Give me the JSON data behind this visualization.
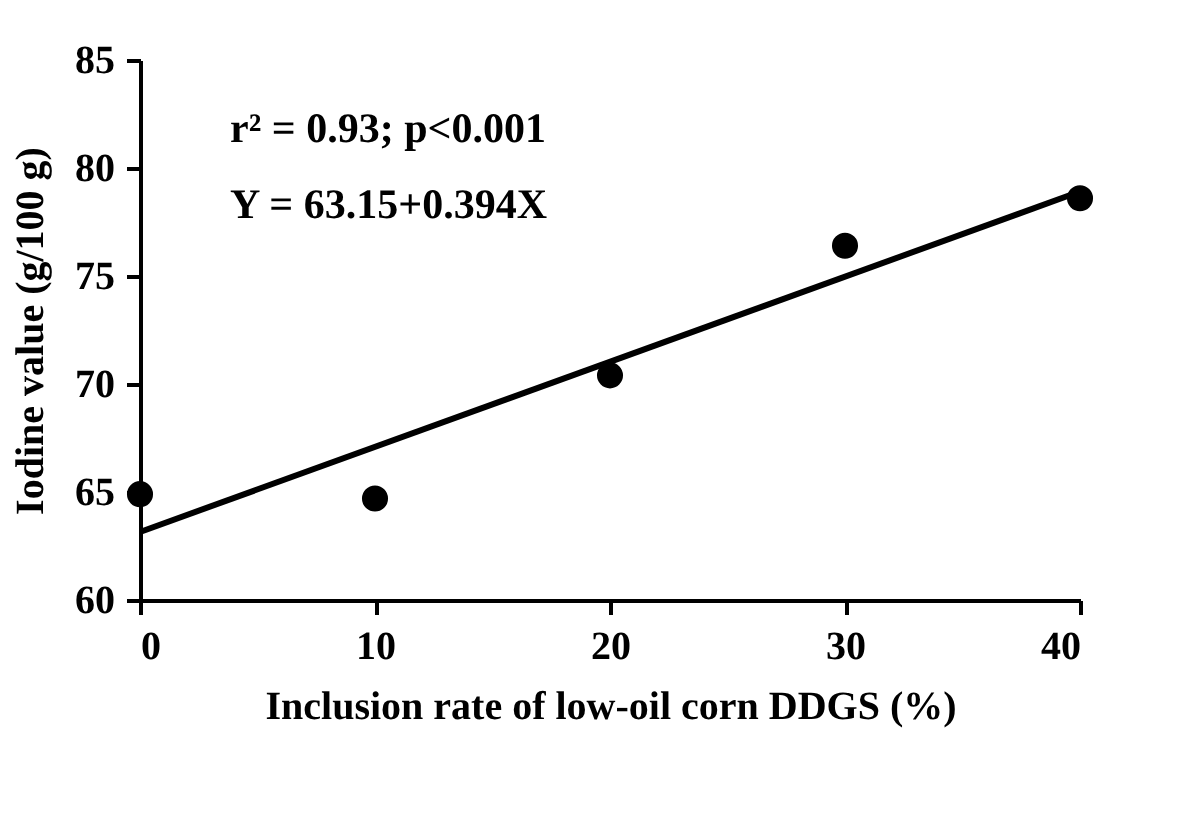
{
  "chart_data": {
    "type": "scatter",
    "xlabel": "Inclusion rate of low-oil corn DDGS (%)",
    "ylabel": "Iodine value (g/100 g)",
    "x": [
      0,
      10,
      20,
      30,
      40
    ],
    "series": [
      {
        "color": "#000000",
        "values": [
          64.9,
          64.7,
          70.4,
          76.4,
          78.6
        ],
        "marker": "circle"
      },
      {
        "type": "line",
        "color": "#000000",
        "x": [
          0,
          40
        ],
        "values": [
          63.15,
          78.91
        ],
        "line_style": "solid"
      }
    ],
    "annotations": [
      "r² = 0.93; p<0.001",
      "Y = 63.15+0.394X"
    ],
    "xlim": [
      0,
      40
    ],
    "xticks": [
      0,
      10,
      20,
      30,
      40
    ],
    "ylim": [
      60,
      85
    ],
    "yticks": [
      60,
      65,
      70,
      75,
      80,
      85
    ],
    "grid": false
  }
}
